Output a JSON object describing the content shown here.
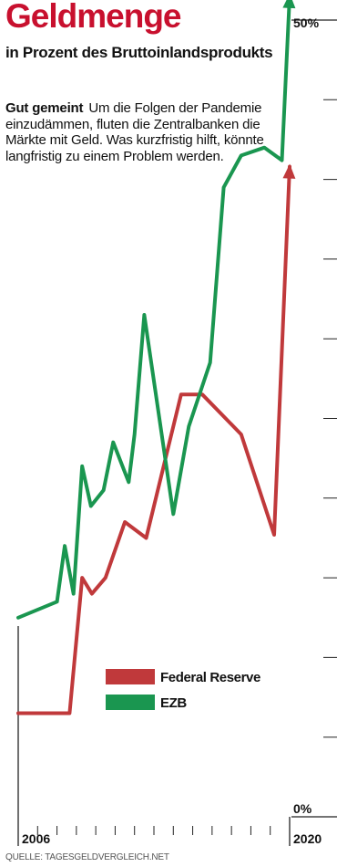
{
  "header": {
    "title": "Geldmenge",
    "subtitle": "in Prozent des Bruttoinlandsprodukts"
  },
  "intro": {
    "lead": "Gut gemeint",
    "text": "Um die Folgen der Pandemie einzudämmen, fluten die Zentralbanken die Märkte mit Geld. Was kurzfristig hilft, könnte langfristig zu einem Problem werden."
  },
  "source": "QUELLE: TAGESGELDVERGLEICH.NET",
  "colors": {
    "title": "#c8102e",
    "federal_reserve": "#c0393b",
    "ezb": "#1a9650",
    "axis": "#222222"
  },
  "chart_data": {
    "type": "line",
    "x_axis": {
      "start_label": "2006",
      "end_label": "2020",
      "range": [
        2006,
        2020
      ]
    },
    "y_axis": {
      "top_label": "50%",
      "bottom_label": "0%",
      "range": [
        0,
        50
      ],
      "tick_step": 5
    },
    "legend": {
      "placement": "left-middle"
    },
    "series": [
      {
        "name": "Federal Reserve",
        "color": "#c0393b",
        "x": [
          2006,
          2008.65,
          2009.3,
          2009.8,
          2010.5,
          2011.5,
          2012.6,
          2014.4,
          2015.5,
          2017.5,
          2019.2,
          2020
        ],
        "y": [
          6.5,
          6.5,
          15.0,
          14.0,
          15.0,
          18.5,
          17.5,
          26.5,
          26.5,
          24.0,
          17.7,
          40.8
        ]
      },
      {
        "name": "EZB",
        "color": "#1a9650",
        "x": [
          2006,
          2008.0,
          2008.4,
          2008.85,
          2009.3,
          2009.75,
          2010.4,
          2010.9,
          2011.7,
          2012.0,
          2012.5,
          2014.0,
          2014.8,
          2015.9,
          2016.6,
          2017.5,
          2018.7,
          2019.6,
          2020
        ],
        "y": [
          12.5,
          13.5,
          17.0,
          14.0,
          22.0,
          19.5,
          20.5,
          23.5,
          21.0,
          24.0,
          31.5,
          19.0,
          24.5,
          28.5,
          39.5,
          41.5,
          42.0,
          41.2,
          51.5
        ]
      }
    ]
  }
}
